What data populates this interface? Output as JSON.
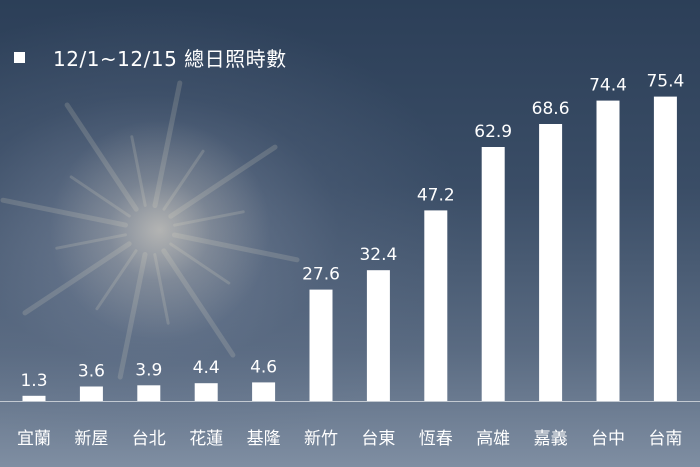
{
  "chart_data": {
    "type": "bar",
    "legend": "12/1~12/15 總日照時數",
    "legend_position": "top-left",
    "categories": [
      "宜蘭",
      "新屋",
      "台北",
      "花蓮",
      "基隆",
      "新竹",
      "台東",
      "恆春",
      "高雄",
      "嘉義",
      "台中",
      "台南"
    ],
    "values": [
      1.3,
      3.6,
      3.9,
      4.4,
      4.6,
      27.6,
      32.4,
      47.2,
      62.9,
      68.6,
      74.4,
      75.4
    ],
    "value_labels": [
      "1.3",
      "3.6",
      "3.9",
      "4.4",
      "4.6",
      "27.6",
      "32.4",
      "47.2",
      "62.9",
      "68.6",
      "74.4",
      "75.4"
    ],
    "ylim": [
      0,
      80
    ],
    "grid": false,
    "bar_color": "#ffffff",
    "text_color": "#ffffff"
  }
}
